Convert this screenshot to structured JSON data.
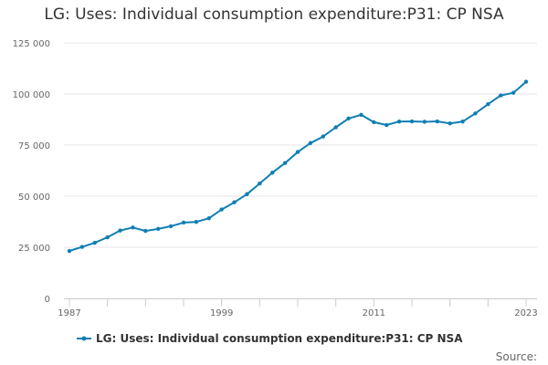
{
  "title": "LG: Uses: Individual consumption expenditure:P31: CP NSA",
  "source_label": "Source:",
  "chart_data": {
    "type": "line",
    "title": "LG: Uses: Individual consumption expenditure:P31: CP NSA",
    "xlabel": "",
    "ylabel": "",
    "x_ticks": [
      "1987",
      "1999",
      "2011",
      "2023"
    ],
    "y_ticks": [
      "0",
      "25 000",
      "50 000",
      "75 000",
      "100 000",
      "125 000"
    ],
    "ylim": [
      0,
      125000
    ],
    "xlim": [
      1987,
      2023
    ],
    "grid": true,
    "legend": "bottom",
    "series": [
      {
        "name": "LG: Uses: Individual consumption expenditure:P31: CP NSA",
        "color": "#0f7fb4",
        "x": [
          1987,
          1988,
          1989,
          1990,
          1991,
          1992,
          1993,
          1994,
          1995,
          1996,
          1997,
          1998,
          1999,
          2000,
          2001,
          2002,
          2003,
          2004,
          2005,
          2006,
          2007,
          2008,
          2009,
          2010,
          2011,
          2012,
          2013,
          2014,
          2015,
          2016,
          2017,
          2018,
          2019,
          2020,
          2021,
          2022,
          2023
        ],
        "values": [
          23200,
          25200,
          27200,
          29900,
          33200,
          34700,
          33000,
          34000,
          35300,
          37100,
          37400,
          39200,
          43500,
          47000,
          51000,
          56200,
          61500,
          66200,
          71600,
          76000,
          79200,
          83700,
          88000,
          89800,
          86200,
          84800,
          86500,
          86600,
          86400,
          86600,
          85600,
          86500,
          90500,
          95000,
          99300,
          100600,
          106000
        ]
      }
    ]
  }
}
